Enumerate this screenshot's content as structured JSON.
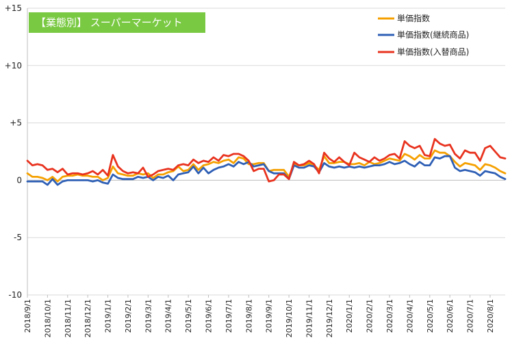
{
  "chart_data": {
    "type": "line",
    "title": "【業態別】 スーパーマーケット",
    "ylim": [
      -10,
      15
    ],
    "y_ticks": [
      "+15",
      "+10",
      "+5",
      "0",
      "-5",
      "-10"
    ],
    "x_tick_labels": [
      "2018/9/1",
      "2018/10/1",
      "2018/11/1",
      "2018/12/1",
      "2019/1/1",
      "2019/2/1",
      "2019/3/1",
      "2019/4/1",
      "2019/5/1",
      "2019/6/1",
      "2019/7/1",
      "2019/8/1",
      "2019/9/1",
      "2019/10/1",
      "2019/11/1",
      "2019/12/1",
      "2020/1/1",
      "2020/2/1",
      "2020/3/1",
      "2020/4/1",
      "2020/5/1",
      "2020/6/1",
      "2020/7/1",
      "2020/8/1"
    ],
    "grid": "horizontal",
    "legend_position": "top-right",
    "series": [
      {
        "name": "単価指数",
        "color": "#f5a000",
        "values": [
          0.6,
          0.3,
          0.3,
          0.2,
          0,
          0.3,
          -0.1,
          0.3,
          0.4,
          0.4,
          0.5,
          0.4,
          0.4,
          0.3,
          0.3,
          0,
          0.2,
          1.2,
          0.6,
          0.5,
          0.4,
          0.4,
          0.6,
          0.5,
          0.6,
          0.2,
          0.5,
          0.5,
          0.7,
          0.8,
          1.2,
          0.8,
          0.9,
          1.4,
          0.9,
          1.3,
          1.4,
          1.6,
          1.5,
          1.7,
          1.8,
          1.5,
          2,
          1.9,
          1.4,
          1.4,
          1.5,
          1.5,
          0.8,
          0.9,
          0.9,
          0.9,
          0.3,
          1.4,
          1.3,
          1.3,
          1.5,
          1.3,
          0.9,
          2.1,
          1.5,
          1.5,
          1.6,
          1.6,
          1.4,
          1.4,
          1.5,
          1.3,
          1.6,
          1.4,
          1.5,
          1.7,
          1.9,
          1.8,
          1.7,
          2.3,
          2.1,
          1.8,
          2.2,
          1.9,
          1.9,
          2.6,
          2.4,
          2.4,
          2.1,
          1.6,
          1.2,
          1.5,
          1.4,
          1.3,
          0.9,
          1.4,
          1.3,
          1.1,
          0.8,
          0.6
        ]
      },
      {
        "name": "単価指数(継続商品)",
        "color": "#2e5fb5",
        "values": [
          -0.1,
          -0.1,
          -0.1,
          -0.1,
          -0.4,
          0.1,
          -0.4,
          -0.1,
          0,
          0,
          0,
          0,
          0,
          -0.1,
          0,
          -0.2,
          -0.3,
          0.5,
          0.2,
          0.1,
          0.1,
          0.1,
          0.3,
          0.2,
          0.3,
          0,
          0.3,
          0.2,
          0.4,
          0,
          0.5,
          0.6,
          0.7,
          1.2,
          0.6,
          1.1,
          0.6,
          0.9,
          1.1,
          1.2,
          1.4,
          1.2,
          1.6,
          1.4,
          1.6,
          1.2,
          1.3,
          1.4,
          0.8,
          0.6,
          0.6,
          0.6,
          0.1,
          1.3,
          1.1,
          1.1,
          1.3,
          1.2,
          0.7,
          1.5,
          1.2,
          1.1,
          1.2,
          1.1,
          1.2,
          1.1,
          1.2,
          1.1,
          1.2,
          1.3,
          1.3,
          1.4,
          1.6,
          1.4,
          1.5,
          1.7,
          1.4,
          1.2,
          1.6,
          1.3,
          1.3,
          2,
          1.9,
          2.1,
          2.1,
          1.1,
          0.8,
          0.9,
          0.8,
          0.7,
          0.4,
          0.8,
          0.7,
          0.6,
          0.3,
          0.1
        ]
      },
      {
        "name": "単価指数(入替商品)",
        "color": "#e8321e",
        "values": [
          1.7,
          1.3,
          1.4,
          1.3,
          0.9,
          1,
          0.7,
          1,
          0.5,
          0.6,
          0.6,
          0.5,
          0.6,
          0.8,
          0.5,
          0.9,
          0.4,
          2.2,
          1.2,
          0.8,
          0.6,
          0.7,
          0.6,
          1.1,
          0.3,
          0.5,
          0.8,
          0.9,
          1,
          0.9,
          1.3,
          1.4,
          1.3,
          1.8,
          1.5,
          1.7,
          1.6,
          2,
          1.7,
          2.2,
          2.1,
          2.3,
          2.3,
          2.1,
          1.7,
          0.8,
          1,
          1,
          -0.1,
          0,
          0.5,
          0.5,
          0.1,
          1.6,
          1.3,
          1.4,
          1.7,
          1.4,
          0.6,
          2.4,
          1.9,
          1.6,
          2,
          1.6,
          1.3,
          2.4,
          2,
          1.8,
          1.6,
          2,
          1.7,
          1.9,
          2.2,
          2.3,
          1.9,
          3.4,
          3,
          2.8,
          3,
          2.2,
          2.1,
          3.6,
          3.2,
          3,
          3.1,
          2.3,
          1.9,
          2.6,
          2.4,
          2.4,
          1.7,
          2.8,
          3,
          2.5,
          2,
          1.9
        ]
      }
    ]
  }
}
